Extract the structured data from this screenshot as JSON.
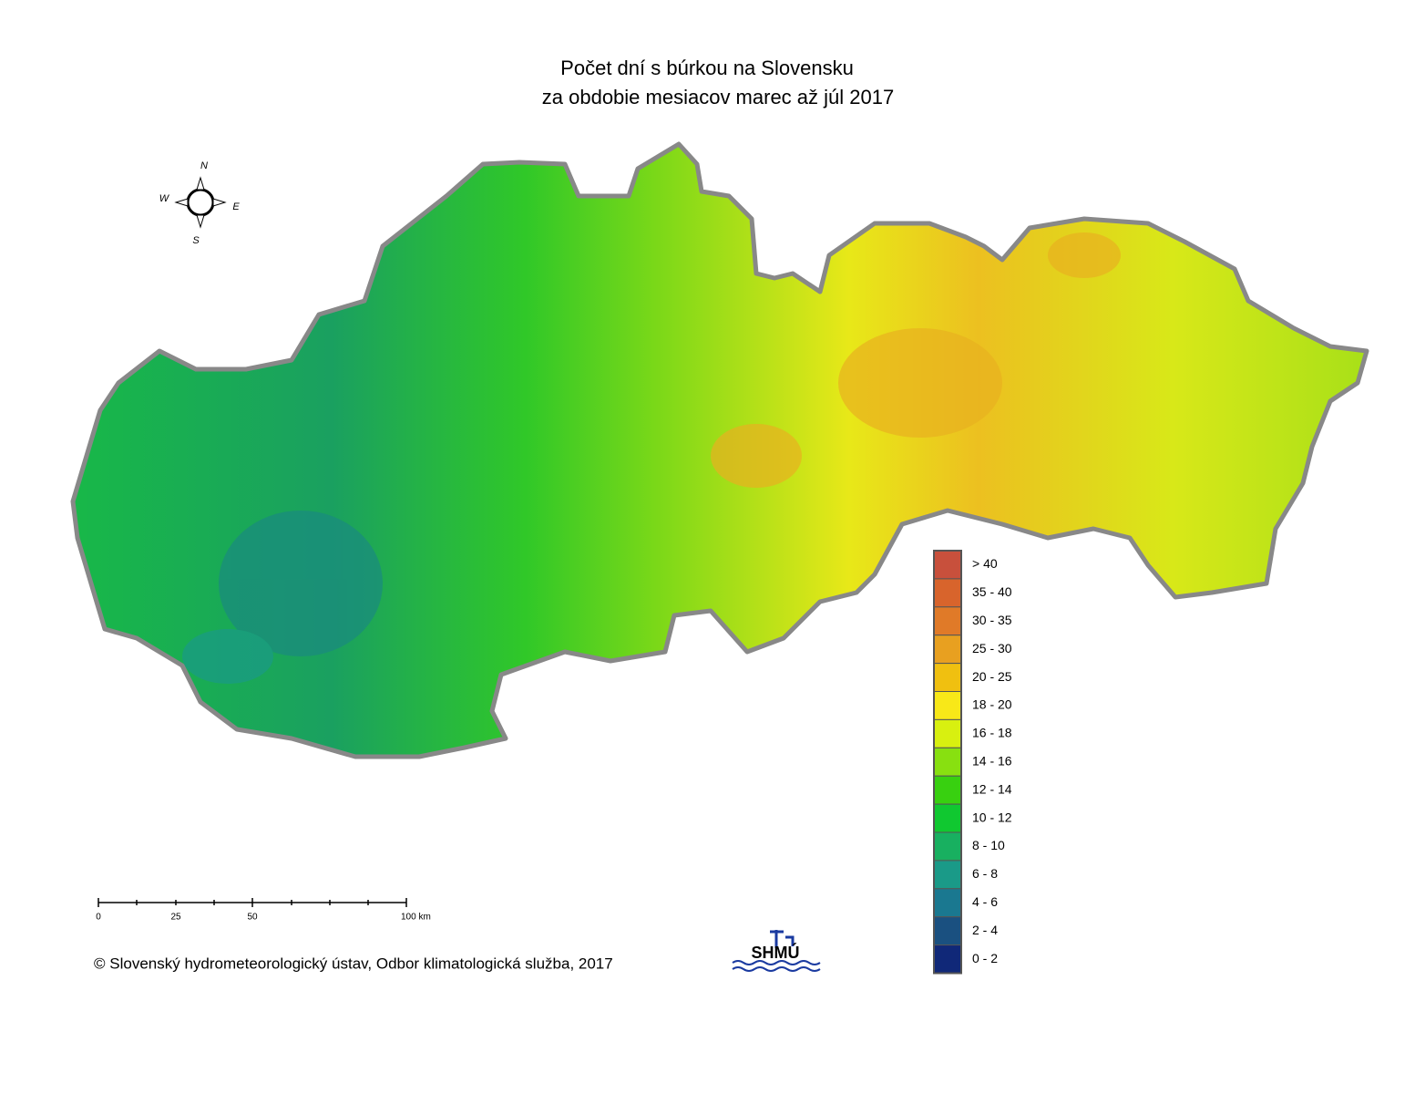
{
  "title": {
    "line1": "Počet dní s búrkou na Slovensku",
    "line2": "za obdobie mesiacov marec až júl 2017"
  },
  "compass": {
    "n": "N",
    "w": "W",
    "e": "E",
    "s": "S"
  },
  "scale_bar": {
    "labels": [
      "0",
      "25",
      "50",
      "100 km"
    ]
  },
  "legend": {
    "items": [
      {
        "label": "> 40",
        "color": "#c8503c"
      },
      {
        "label": "35 - 40",
        "color": "#d8642c"
      },
      {
        "label": "30 - 35",
        "color": "#e07a28"
      },
      {
        "label": "25 - 30",
        "color": "#e8a020"
      },
      {
        "label": "20 - 25",
        "color": "#f0c010"
      },
      {
        "label": "18 - 20",
        "color": "#f8e818"
      },
      {
        "label": "16 - 18",
        "color": "#d8f010"
      },
      {
        "label": "14 - 16",
        "color": "#88e010"
      },
      {
        "label": "12 - 14",
        "color": "#38d010"
      },
      {
        "label": "10 - 12",
        "color": "#10c830"
      },
      {
        "label": "8 - 10",
        "color": "#18b060"
      },
      {
        "label": "6 - 8",
        "color": "#1a9a88"
      },
      {
        "label": "4 - 6",
        "color": "#1a7890"
      },
      {
        "label": "2 - 4",
        "color": "#1a5080"
      },
      {
        "label": "0 - 2",
        "color": "#102878"
      }
    ]
  },
  "logo": "SHMÚ",
  "copyright": "© Slovenský hydrometeorologický ústav, Odbor klimatologická služba, 2017"
}
